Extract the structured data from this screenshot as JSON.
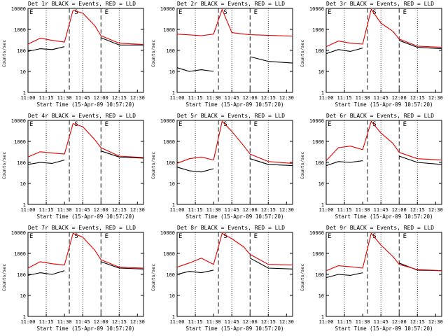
{
  "figure": {
    "xtick_labels": [
      "11:00",
      "11:15",
      "11:30",
      "11:45",
      "12:00",
      "12:15",
      "12:30"
    ],
    "ytick_labels": [
      "1",
      "10",
      "100",
      "1000",
      "10000"
    ],
    "ylabel": "Counts/sec",
    "xlabel": "Start Time (15-Apr-09 10:57:20)",
    "markers": [
      "E",
      "S",
      "E"
    ],
    "colors": {
      "events": "#000000",
      "lld": "#e00000"
    }
  },
  "chart_data": [
    {
      "type": "line",
      "title": "Det 1r BLACK = Events, RED = LLD",
      "xlabel": "Start Time (15-Apr-09 10:57:20)",
      "ylabel": "Counts/sec",
      "ylim": [
        1,
        10000
      ],
      "ylog": true,
      "xlim": [
        "11:00",
        "12:35"
      ],
      "x": [
        "11:00",
        "11:10",
        "11:20",
        "11:30",
        "11:37",
        "11:45",
        "11:55",
        "12:00",
        "12:15",
        "12:35"
      ],
      "series": [
        {
          "name": "Events",
          "values": [
            90,
            120,
            110,
            150,
            null,
            null,
            null,
            400,
            180,
            180
          ]
        },
        {
          "name": "LLD",
          "values": [
            200,
            380,
            300,
            250,
            8000,
            6000,
            1500,
            500,
            220,
            190
          ]
        }
      ]
    },
    {
      "type": "line",
      "title": "Det 2r BLACK = Events, RED = LLD",
      "xlabel": "Start Time (15-Apr-09 10:57:20)",
      "ylabel": "Counts/sec",
      "ylim": [
        1,
        10000
      ],
      "ylog": true,
      "xlim": [
        "11:00",
        "12:35"
      ],
      "x": [
        "11:00",
        "11:10",
        "11:20",
        "11:30",
        "11:37",
        "11:45",
        "11:55",
        "12:00",
        "12:15",
        "12:35"
      ],
      "series": [
        {
          "name": "Events",
          "values": [
            15,
            10,
            12,
            10,
            null,
            null,
            null,
            50,
            30,
            25
          ]
        },
        {
          "name": "LLD",
          "values": [
            600,
            550,
            500,
            600,
            9000,
            700,
            600,
            560,
            520,
            480
          ]
        }
      ]
    },
    {
      "type": "line",
      "title": "Det 3r BLACK = Events, RED = LLD",
      "xlabel": "Start Time (15-Apr-09 10:57:20)",
      "ylabel": "Counts/sec",
      "ylim": [
        1,
        10000
      ],
      "ylog": true,
      "xlim": [
        "11:00",
        "12:35"
      ],
      "x": [
        "11:00",
        "11:10",
        "11:20",
        "11:30",
        "11:37",
        "11:45",
        "11:55",
        "12:00",
        "12:15",
        "12:35"
      ],
      "series": [
        {
          "name": "Events",
          "values": [
            70,
            110,
            90,
            130,
            null,
            null,
            null,
            300,
            140,
            120
          ]
        },
        {
          "name": "LLD",
          "values": [
            150,
            280,
            220,
            200,
            9000,
            2000,
            800,
            350,
            160,
            140
          ]
        }
      ]
    },
    {
      "type": "line",
      "title": "Det 4r BLACK = Events, RED = LLD",
      "xlabel": "Start Time (15-Apr-09 10:57:20)",
      "ylabel": "Counts/sec",
      "ylim": [
        1,
        10000
      ],
      "ylog": true,
      "xlim": [
        "11:00",
        "12:35"
      ],
      "x": [
        "11:00",
        "11:10",
        "11:20",
        "11:30",
        "11:37",
        "11:45",
        "11:55",
        "12:00",
        "12:15",
        "12:35"
      ],
      "series": [
        {
          "name": "Events",
          "values": [
            80,
            100,
            90,
            130,
            null,
            null,
            null,
            350,
            180,
            160
          ]
        },
        {
          "name": "LLD",
          "values": [
            180,
            320,
            280,
            250,
            7000,
            5000,
            1200,
            500,
            200,
            170
          ]
        }
      ]
    },
    {
      "type": "line",
      "title": "Det 5r BLACK = Events, RED = LLD",
      "xlabel": "Start Time (15-Apr-09 10:57:20)",
      "ylabel": "Counts/sec",
      "ylim": [
        1,
        10000
      ],
      "ylog": true,
      "xlim": [
        "11:00",
        "12:35"
      ],
      "x": [
        "11:00",
        "11:10",
        "11:20",
        "11:30",
        "11:37",
        "11:45",
        "11:55",
        "12:00",
        "12:15",
        "12:35"
      ],
      "series": [
        {
          "name": "Events",
          "values": [
            60,
            40,
            35,
            50,
            null,
            null,
            null,
            150,
            80,
            70
          ]
        },
        {
          "name": "LLD",
          "values": [
            90,
            150,
            180,
            130,
            9000,
            3000,
            600,
            250,
            110,
            90
          ]
        }
      ]
    },
    {
      "type": "line",
      "title": "Det 6r BLACK = Events, RED = LLD",
      "xlabel": "Start Time (15-Apr-09 10:57:20)",
      "ylabel": "Counts/sec",
      "ylim": [
        1,
        10000
      ],
      "ylog": true,
      "xlim": [
        "11:00",
        "12:35"
      ],
      "x": [
        "11:00",
        "11:10",
        "11:20",
        "11:30",
        "11:37",
        "11:45",
        "11:55",
        "12:00",
        "12:15",
        "12:35"
      ],
      "series": [
        {
          "name": "Events",
          "values": [
            70,
            110,
            100,
            120,
            null,
            null,
            null,
            200,
            100,
            80
          ]
        },
        {
          "name": "LLD",
          "values": [
            120,
            500,
            600,
            400,
            9000,
            2500,
            800,
            300,
            150,
            130
          ]
        }
      ]
    },
    {
      "type": "line",
      "title": "Det 7r BLACK = Events, RED = LLD",
      "xlabel": "Start Time (15-Apr-09 10:57:20)",
      "ylabel": "Counts/sec",
      "ylim": [
        1,
        10000
      ],
      "ylog": true,
      "xlim": [
        "11:00",
        "12:35"
      ],
      "x": [
        "11:00",
        "11:10",
        "11:20",
        "11:30",
        "11:37",
        "11:45",
        "11:55",
        "12:00",
        "12:15",
        "12:35"
      ],
      "series": [
        {
          "name": "Events",
          "values": [
            90,
            120,
            100,
            150,
            null,
            null,
            null,
            400,
            200,
            180
          ]
        },
        {
          "name": "LLD",
          "values": [
            200,
            400,
            320,
            280,
            9000,
            6000,
            1400,
            500,
            220,
            200
          ]
        }
      ]
    },
    {
      "type": "line",
      "title": "Det 8r BLACK = Events, RED = LLD",
      "xlabel": "Start Time (15-Apr-09 10:57:20)",
      "ylabel": "Counts/sec",
      "ylim": [
        1,
        10000
      ],
      "ylog": true,
      "xlim": [
        "11:00",
        "12:35"
      ],
      "x": [
        "11:00",
        "11:10",
        "11:20",
        "11:30",
        "11:37",
        "11:45",
        "11:55",
        "12:00",
        "12:15",
        "12:35"
      ],
      "series": [
        {
          "name": "Events",
          "values": [
            100,
            140,
            120,
            160,
            null,
            null,
            null,
            600,
            200,
            180
          ]
        },
        {
          "name": "LLD",
          "values": [
            220,
            350,
            600,
            300,
            9000,
            5000,
            2000,
            900,
            300,
            280
          ]
        }
      ]
    },
    {
      "type": "line",
      "title": "Det 9r BLACK = Events, RED = LLD",
      "xlabel": "Start Time (15-Apr-09 10:57:20)",
      "ylabel": "Counts/sec",
      "ylim": [
        1,
        10000
      ],
      "ylog": true,
      "xlim": [
        "11:00",
        "12:35"
      ],
      "x": [
        "11:00",
        "11:10",
        "11:20",
        "11:30",
        "11:37",
        "11:45",
        "11:55",
        "12:00",
        "12:15",
        "12:35"
      ],
      "series": [
        {
          "name": "Events",
          "values": [
            70,
            100,
            90,
            120,
            null,
            null,
            null,
            350,
            160,
            150
          ]
        },
        {
          "name": "LLD",
          "values": [
            150,
            260,
            230,
            200,
            9000,
            2500,
            700,
            300,
            170,
            150
          ]
        }
      ]
    }
  ]
}
